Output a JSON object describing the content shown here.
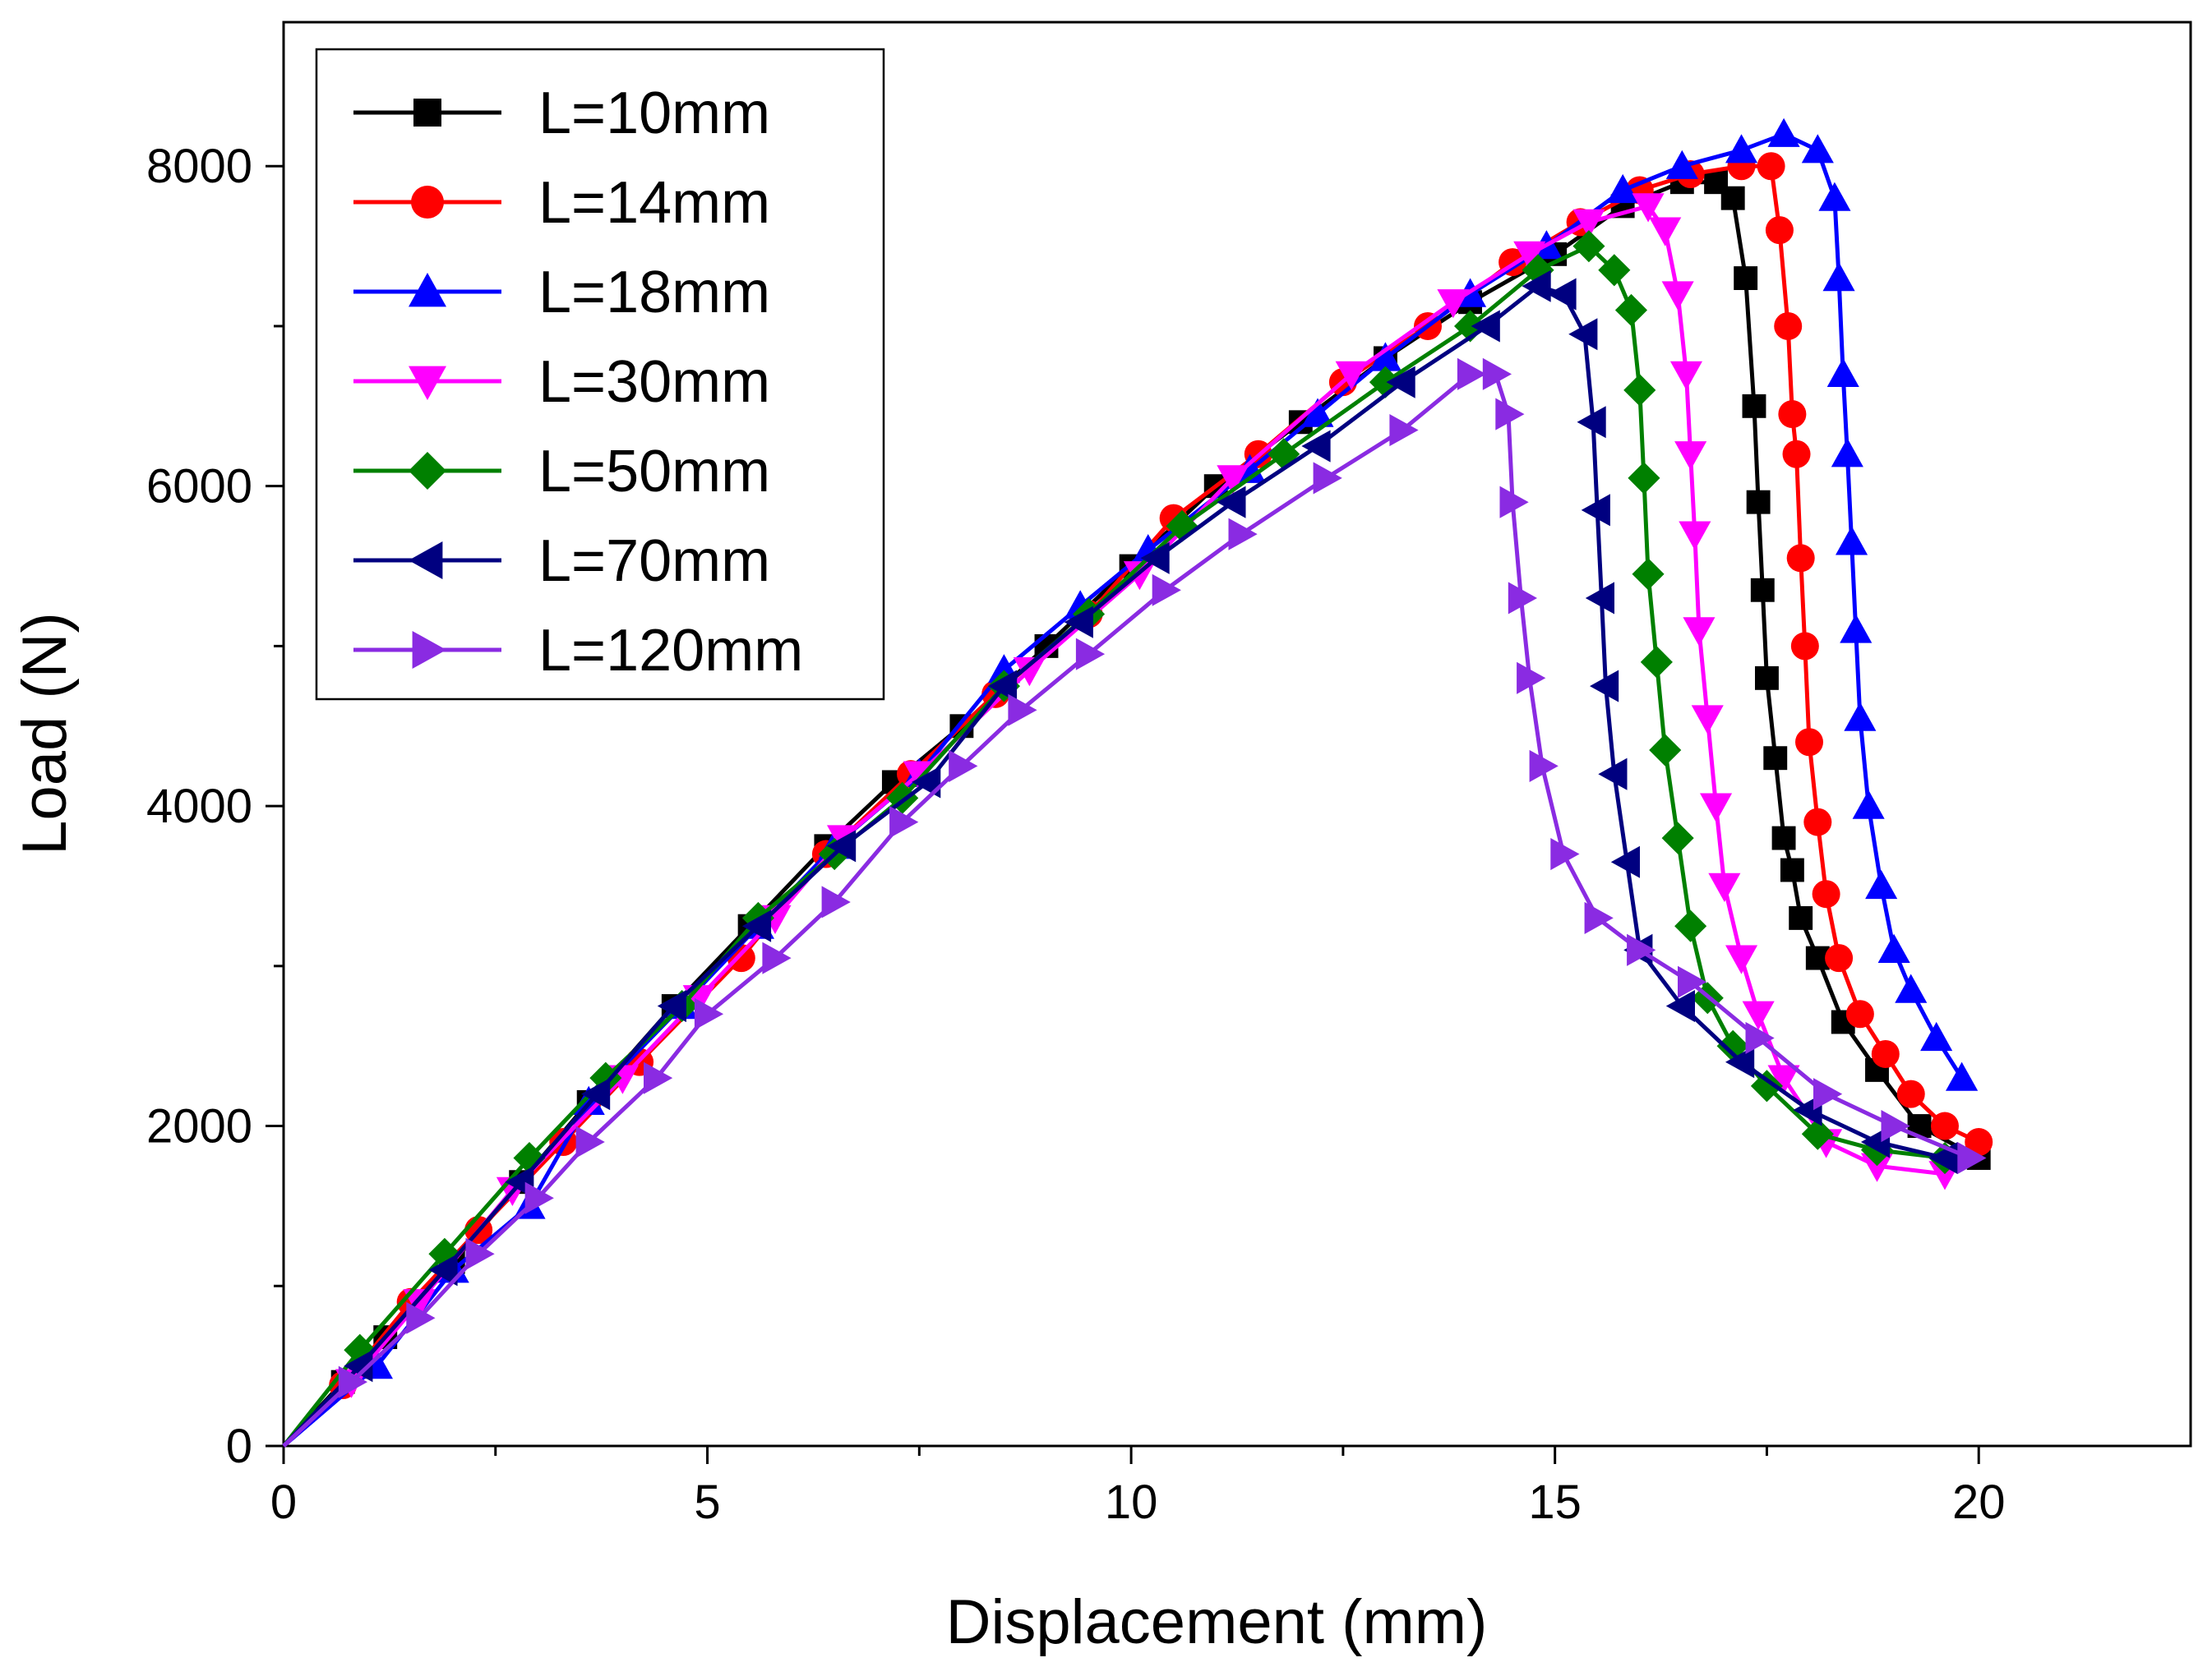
{
  "chart_data": {
    "type": "line",
    "title": "",
    "xlabel": "Displacement (mm)",
    "ylabel": "Load (N)",
    "xlim": [
      0,
      22.5
    ],
    "ylim": [
      0,
      8900
    ],
    "xticks": [
      0,
      5,
      10,
      15,
      20
    ],
    "yticks": [
      0,
      2000,
      4000,
      6000,
      8000
    ],
    "x_minor_step": 2.5,
    "y_minor_step": 1000,
    "grid": false,
    "legend_position": "top-left",
    "series": [
      {
        "name": "L=10mm",
        "color": "#000000",
        "marker": "square",
        "points": [
          [
            0,
            0
          ],
          [
            0.7,
            400
          ],
          [
            1.2,
            680
          ],
          [
            2,
            1150
          ],
          [
            2.8,
            1650
          ],
          [
            3.6,
            2150
          ],
          [
            4.6,
            2750
          ],
          [
            5.5,
            3250
          ],
          [
            6.4,
            3750
          ],
          [
            7.2,
            4150
          ],
          [
            8,
            4500
          ],
          [
            9,
            5000
          ],
          [
            10,
            5500
          ],
          [
            11,
            6000
          ],
          [
            12,
            6400
          ],
          [
            13,
            6800
          ],
          [
            14,
            7150
          ],
          [
            15,
            7450
          ],
          [
            15.8,
            7750
          ],
          [
            16.5,
            7900
          ],
          [
            16.9,
            7900
          ],
          [
            17.1,
            7800
          ],
          [
            17.25,
            7300
          ],
          [
            17.35,
            6500
          ],
          [
            17.4,
            5900
          ],
          [
            17.45,
            5350
          ],
          [
            17.5,
            4800
          ],
          [
            17.6,
            4300
          ],
          [
            17.7,
            3800
          ],
          [
            17.8,
            3600
          ],
          [
            17.9,
            3300
          ],
          [
            18.1,
            3050
          ],
          [
            18.4,
            2650
          ],
          [
            18.8,
            2350
          ],
          [
            19.3,
            2000
          ],
          [
            20,
            1800
          ]
        ]
      },
      {
        "name": "L=14mm",
        "color": "#ff0000",
        "marker": "circle",
        "points": [
          [
            0,
            0
          ],
          [
            0.7,
            380
          ],
          [
            1.5,
            900
          ],
          [
            2.3,
            1350
          ],
          [
            3.3,
            1900
          ],
          [
            4.2,
            2400
          ],
          [
            5.4,
            3050
          ],
          [
            6.4,
            3700
          ],
          [
            7.4,
            4200
          ],
          [
            8.4,
            4700
          ],
          [
            9.5,
            5200
          ],
          [
            10.5,
            5800
          ],
          [
            11.5,
            6200
          ],
          [
            12.5,
            6650
          ],
          [
            13.5,
            7000
          ],
          [
            14.5,
            7400
          ],
          [
            15.3,
            7650
          ],
          [
            16,
            7850
          ],
          [
            16.6,
            7950
          ],
          [
            17.2,
            8000
          ],
          [
            17.55,
            8000
          ],
          [
            17.65,
            7600
          ],
          [
            17.75,
            7000
          ],
          [
            17.8,
            6450
          ],
          [
            17.85,
            6200
          ],
          [
            17.9,
            5550
          ],
          [
            17.95,
            5000
          ],
          [
            18,
            4400
          ],
          [
            18.1,
            3900
          ],
          [
            18.2,
            3450
          ],
          [
            18.35,
            3050
          ],
          [
            18.6,
            2700
          ],
          [
            18.9,
            2450
          ],
          [
            19.2,
            2200
          ],
          [
            19.6,
            2000
          ],
          [
            20,
            1900
          ]
        ]
      },
      {
        "name": "L=18mm",
        "color": "#0000ff",
        "marker": "triangle-up",
        "points": [
          [
            0,
            0
          ],
          [
            1.1,
            500
          ],
          [
            2,
            1100
          ],
          [
            2.9,
            1500
          ],
          [
            3.6,
            2150
          ],
          [
            4.7,
            2750
          ],
          [
            5.6,
            3250
          ],
          [
            6.5,
            3750
          ],
          [
            7.5,
            4200
          ],
          [
            8.5,
            4850
          ],
          [
            9.4,
            5250
          ],
          [
            10.2,
            5600
          ],
          [
            11.4,
            6100
          ],
          [
            12.2,
            6450
          ],
          [
            13,
            6800
          ],
          [
            14,
            7200
          ],
          [
            14.9,
            7500
          ],
          [
            15.8,
            7850
          ],
          [
            16.5,
            8000
          ],
          [
            17.2,
            8100
          ],
          [
            17.7,
            8200
          ],
          [
            18.1,
            8100
          ],
          [
            18.3,
            7800
          ],
          [
            18.35,
            7300
          ],
          [
            18.4,
            6700
          ],
          [
            18.45,
            6200
          ],
          [
            18.5,
            5650
          ],
          [
            18.55,
            5100
          ],
          [
            18.6,
            4550
          ],
          [
            18.7,
            4000
          ],
          [
            18.85,
            3500
          ],
          [
            19,
            3100
          ],
          [
            19.2,
            2850
          ],
          [
            19.5,
            2550
          ],
          [
            19.8,
            2300
          ]
        ]
      },
      {
        "name": "L=30mm",
        "color": "#ff00ff",
        "marker": "triangle-down",
        "points": [
          [
            0,
            0
          ],
          [
            0.8,
            400
          ],
          [
            1.6,
            900
          ],
          [
            2.7,
            1600
          ],
          [
            4,
            2300
          ],
          [
            4.9,
            2800
          ],
          [
            5.8,
            3300
          ],
          [
            6.6,
            3800
          ],
          [
            7.5,
            4200
          ],
          [
            8.8,
            4850
          ],
          [
            10.1,
            5450
          ],
          [
            11.2,
            6050
          ],
          [
            12.6,
            6700
          ],
          [
            13.8,
            7150
          ],
          [
            14.7,
            7450
          ],
          [
            15.4,
            7650
          ],
          [
            16.1,
            7750
          ],
          [
            16.3,
            7600
          ],
          [
            16.45,
            7200
          ],
          [
            16.55,
            6700
          ],
          [
            16.6,
            6200
          ],
          [
            16.65,
            5700
          ],
          [
            16.7,
            5100
          ],
          [
            16.8,
            4550
          ],
          [
            16.9,
            4000
          ],
          [
            17,
            3500
          ],
          [
            17.2,
            3050
          ],
          [
            17.4,
            2700
          ],
          [
            17.7,
            2300
          ],
          [
            18.2,
            1900
          ],
          [
            18.8,
            1750
          ],
          [
            19.6,
            1700
          ]
        ]
      },
      {
        "name": "L=50mm",
        "color": "#008000",
        "marker": "diamond",
        "points": [
          [
            0,
            0
          ],
          [
            0.9,
            600
          ],
          [
            1.9,
            1200
          ],
          [
            2.9,
            1800
          ],
          [
            3.8,
            2300
          ],
          [
            4.7,
            2750
          ],
          [
            5.6,
            3300
          ],
          [
            6.5,
            3700
          ],
          [
            7.3,
            4050
          ],
          [
            8.5,
            4750
          ],
          [
            9.5,
            5200
          ],
          [
            10.6,
            5750
          ],
          [
            11.8,
            6200
          ],
          [
            13,
            6650
          ],
          [
            14,
            7000
          ],
          [
            14.8,
            7350
          ],
          [
            15.4,
            7500
          ],
          [
            15.7,
            7350
          ],
          [
            15.9,
            7100
          ],
          [
            16,
            6600
          ],
          [
            16.05,
            6050
          ],
          [
            16.1,
            5450
          ],
          [
            16.2,
            4900
          ],
          [
            16.3,
            4350
          ],
          [
            16.45,
            3800
          ],
          [
            16.6,
            3250
          ],
          [
            16.8,
            2800
          ],
          [
            17.1,
            2500
          ],
          [
            17.5,
            2250
          ],
          [
            18.1,
            1950
          ],
          [
            18.8,
            1850
          ],
          [
            19.6,
            1800
          ]
        ]
      },
      {
        "name": "L=70mm",
        "color": "#000080",
        "marker": "triangle-left",
        "points": [
          [
            0,
            0
          ],
          [
            0.9,
            500
          ],
          [
            1.9,
            1100
          ],
          [
            2.8,
            1650
          ],
          [
            3.7,
            2200
          ],
          [
            4.6,
            2750
          ],
          [
            5.6,
            3250
          ],
          [
            6.6,
            3750
          ],
          [
            7.6,
            4150
          ],
          [
            8.5,
            4750
          ],
          [
            9.4,
            5150
          ],
          [
            10.3,
            5550
          ],
          [
            11.2,
            5900
          ],
          [
            12.2,
            6250
          ],
          [
            13.2,
            6650
          ],
          [
            14.2,
            7000
          ],
          [
            14.8,
            7250
          ],
          [
            15.1,
            7200
          ],
          [
            15.35,
            6950
          ],
          [
            15.45,
            6400
          ],
          [
            15.5,
            5850
          ],
          [
            15.55,
            5300
          ],
          [
            15.6,
            4750
          ],
          [
            15.7,
            4200
          ],
          [
            15.85,
            3650
          ],
          [
            16,
            3100
          ],
          [
            16.5,
            2750
          ],
          [
            17.2,
            2400
          ],
          [
            18,
            2100
          ],
          [
            18.8,
            1900
          ],
          [
            19.6,
            1800
          ]
        ]
      },
      {
        "name": "L=120mm",
        "color": "#8a2be2",
        "marker": "triangle-right",
        "points": [
          [
            0,
            0
          ],
          [
            0.8,
            400
          ],
          [
            1.6,
            800
          ],
          [
            2.3,
            1200
          ],
          [
            3,
            1550
          ],
          [
            3.6,
            1900
          ],
          [
            4.4,
            2300
          ],
          [
            5,
            2700
          ],
          [
            5.8,
            3050
          ],
          [
            6.5,
            3400
          ],
          [
            7.3,
            3900
          ],
          [
            8,
            4250
          ],
          [
            8.7,
            4600
          ],
          [
            9.5,
            4950
          ],
          [
            10.4,
            5350
          ],
          [
            11.3,
            5700
          ],
          [
            12.3,
            6050
          ],
          [
            13.2,
            6350
          ],
          [
            14,
            6700
          ],
          [
            14.3,
            6700
          ],
          [
            14.45,
            6450
          ],
          [
            14.5,
            5900
          ],
          [
            14.6,
            5300
          ],
          [
            14.7,
            4800
          ],
          [
            14.85,
            4250
          ],
          [
            15.1,
            3700
          ],
          [
            15.5,
            3300
          ],
          [
            16,
            3100
          ],
          [
            16.6,
            2900
          ],
          [
            17.4,
            2550
          ],
          [
            18.2,
            2200
          ],
          [
            19,
            2000
          ],
          [
            19.9,
            1800
          ]
        ]
      }
    ]
  }
}
